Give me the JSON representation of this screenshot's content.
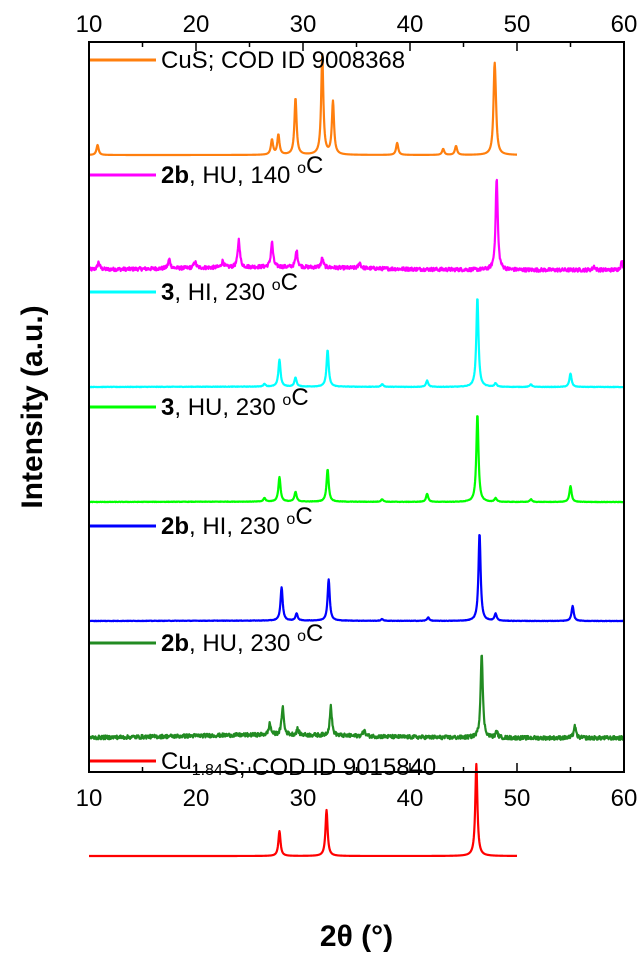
{
  "chart_data": {
    "type": "line",
    "xlabel": "2θ (°)",
    "ylabel": "Intensity (a.u.)",
    "xlim": [
      10,
      60
    ],
    "x_ticks": [
      10,
      20,
      30,
      40,
      50,
      60
    ],
    "x_tick_labels": [
      "10",
      "20",
      "30",
      "40",
      "50",
      "60"
    ],
    "top_tick_labels": [
      "10",
      "20",
      "30",
      "40",
      "50",
      "60"
    ],
    "grid": false,
    "legend_placement": "above each trace",
    "series": [
      {
        "label_parts": [
          {
            "t": "CuS; COD ID 9008368"
          }
        ],
        "color": "#ff7f0e",
        "noise": 0,
        "x_range": [
          10,
          50
        ],
        "peaks": [
          [
            10.8,
            0.1
          ],
          [
            27.1,
            0.15
          ],
          [
            27.7,
            0.2
          ],
          [
            29.3,
            0.57
          ],
          [
            31.8,
            1.0
          ],
          [
            32.8,
            0.53
          ],
          [
            38.8,
            0.12
          ],
          [
            43.1,
            0.06
          ],
          [
            44.3,
            0.09
          ],
          [
            47.9,
            0.77
          ],
          [
            48.0,
            0.25
          ]
        ]
      },
      {
        "label_parts": [
          {
            "t": "2b",
            "b": true
          },
          {
            "t": ", HU, 140 "
          },
          {
            "t": "o",
            "sup": true
          },
          {
            "t": "C"
          }
        ],
        "color": "#ff00ff",
        "noise": 0.04,
        "x_range": [
          10,
          60
        ],
        "peaks": [
          [
            10.9,
            0.08
          ],
          [
            17.5,
            0.1
          ],
          [
            19.9,
            0.07
          ],
          [
            22.5,
            0.07
          ],
          [
            24.0,
            0.3
          ],
          [
            27.1,
            0.27
          ],
          [
            29.4,
            0.18
          ],
          [
            31.8,
            0.1
          ],
          [
            35.3,
            0.06
          ],
          [
            48.1,
            1.0
          ],
          [
            57.2,
            0.04
          ],
          [
            59.8,
            0.09
          ]
        ]
      },
      {
        "label_parts": [
          {
            "t": "3",
            "b": true
          },
          {
            "t": ", HI, 230 "
          },
          {
            "t": "o",
            "sup": true
          },
          {
            "t": "C"
          }
        ],
        "color": "#00ffff",
        "noise": 0.005,
        "x_range": [
          10,
          60
        ],
        "peaks": [
          [
            26.4,
            0.03
          ],
          [
            27.8,
            0.3
          ],
          [
            29.3,
            0.1
          ],
          [
            32.3,
            0.41
          ],
          [
            37.4,
            0.03
          ],
          [
            41.6,
            0.07
          ],
          [
            46.3,
            1.0
          ],
          [
            48.0,
            0.04
          ],
          [
            51.3,
            0.03
          ],
          [
            55.0,
            0.15
          ]
        ]
      },
      {
        "label_parts": [
          {
            "t": "3",
            "b": true
          },
          {
            "t": ", HU, 230 "
          },
          {
            "t": "o",
            "sup": true
          },
          {
            "t": "C"
          }
        ],
        "color": "#00ff00",
        "noise": 0.005,
        "x_range": [
          10,
          60
        ],
        "peaks": [
          [
            26.4,
            0.04
          ],
          [
            27.8,
            0.28
          ],
          [
            29.3,
            0.11
          ],
          [
            32.3,
            0.37
          ],
          [
            37.4,
            0.03
          ],
          [
            41.6,
            0.09
          ],
          [
            46.3,
            1.0
          ],
          [
            48.0,
            0.04
          ],
          [
            51.3,
            0.03
          ],
          [
            55.0,
            0.18
          ]
        ]
      },
      {
        "label_parts": [
          {
            "t": "2b",
            "b": true
          },
          {
            "t": ", HI, 230 "
          },
          {
            "t": "o",
            "sup": true
          },
          {
            "t": "C"
          }
        ],
        "color": "#0000ff",
        "noise": 0.005,
        "x_range": [
          10,
          60
        ],
        "peaks": [
          [
            28.0,
            0.38
          ],
          [
            29.4,
            0.08
          ],
          [
            32.4,
            0.47
          ],
          [
            37.4,
            0.02
          ],
          [
            41.7,
            0.04
          ],
          [
            46.5,
            1.0
          ],
          [
            48.0,
            0.08
          ],
          [
            55.2,
            0.17
          ]
        ]
      },
      {
        "label_parts": [
          {
            "t": "2b",
            "b": true
          },
          {
            "t": ", HU, 230 "
          },
          {
            "t": "o",
            "sup": true
          },
          {
            "t": "C"
          }
        ],
        "color": "#228b22",
        "noise": 0.045,
        "x_range": [
          10,
          60
        ],
        "peaks": [
          [
            26.9,
            0.13
          ],
          [
            28.1,
            0.33
          ],
          [
            29.5,
            0.07
          ],
          [
            32.6,
            0.34
          ],
          [
            35.7,
            0.07
          ],
          [
            46.7,
            1.0
          ],
          [
            48.1,
            0.07
          ],
          [
            55.4,
            0.14
          ]
        ]
      },
      {
        "label_parts": [
          {
            "t": "Cu"
          },
          {
            "t": "1.84",
            "sub": true
          },
          {
            "t": "S; COD ID 9015840"
          }
        ],
        "color": "#ff0000",
        "noise": 0,
        "x_range": [
          10,
          50
        ],
        "peaks": [
          [
            27.8,
            0.27
          ],
          [
            32.2,
            0.5
          ],
          [
            46.2,
            1.0
          ]
        ]
      }
    ]
  }
}
